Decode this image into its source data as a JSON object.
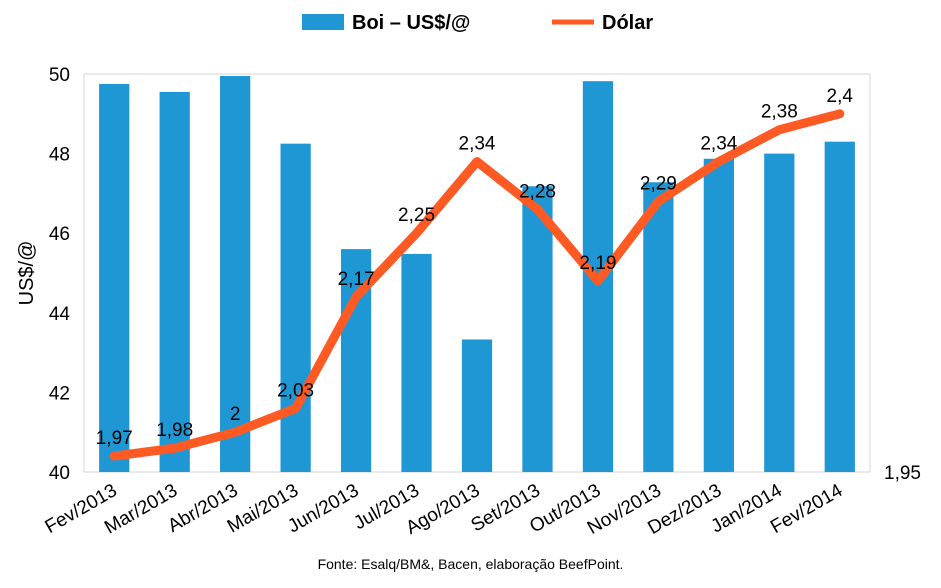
{
  "chart_data": {
    "type": "bar",
    "categories": [
      "Fev/2013",
      "Mar/2013",
      "Abr/2013",
      "Mai/2013",
      "Jun/2013",
      "Jul/2013",
      "Ago/2013",
      "Set/2013",
      "Out/2013",
      "Nov/2013",
      "Dez/2013",
      "Jan/2014",
      "Fev/2014"
    ],
    "series": [
      {
        "name": "Boi – US$/@",
        "type": "bar",
        "axis": "left",
        "color": "#1f97d4",
        "values": [
          49.75,
          49.55,
          49.95,
          48.25,
          45.6,
          45.48,
          43.33,
          47.18,
          49.82,
          47.28,
          47.87,
          48.0,
          48.3
        ]
      },
      {
        "name": "Dólar",
        "type": "line",
        "axis": "right",
        "color": "#ff5a24",
        "values": [
          1.97,
          1.98,
          2.0,
          2.03,
          2.17,
          2.25,
          2.34,
          2.28,
          2.19,
          2.29,
          2.34,
          2.38,
          2.4
        ],
        "labels": [
          "1,97",
          "1,98",
          "2",
          "2,03",
          "2,17",
          "2,25",
          "2,34",
          "2,28",
          "2,19",
          "2,29",
          "2,34",
          "2,38",
          "2,4"
        ]
      }
    ],
    "ylabel": "US$/@",
    "ylim": [
      40,
      50
    ],
    "yticks": [
      "40",
      "42",
      "44",
      "46",
      "48",
      "50"
    ],
    "y2_visible_tick": "1,95",
    "legend_position": "top",
    "grid": false
  },
  "source_note": "Fonte: Esalq/BM&, Bacen, elaboração BeefPoint."
}
